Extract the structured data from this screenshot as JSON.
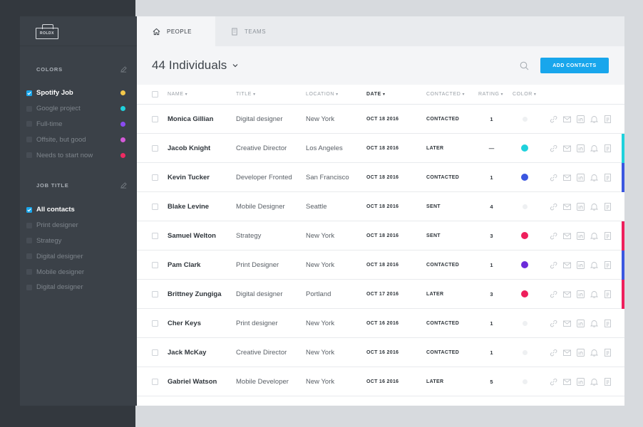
{
  "brand": {
    "logo_text": "ROLDX"
  },
  "sidebar": {
    "colors": {
      "heading": "COLORS",
      "items": [
        {
          "label": "Spotify Job",
          "checked": true,
          "color": "#f3c84a"
        },
        {
          "label": "Google project",
          "checked": false,
          "color": "#1fd1dc"
        },
        {
          "label": "Full-time",
          "checked": false,
          "color": "#8a4bf0"
        },
        {
          "label": "Offsite, but good",
          "checked": false,
          "color": "#d45ad8"
        },
        {
          "label": "Needs to start now",
          "checked": false,
          "color": "#ee2a62"
        }
      ]
    },
    "job_title": {
      "heading": "JOB TITLE",
      "items": [
        {
          "label": "All contacts",
          "checked": true
        },
        {
          "label": "Print designer",
          "checked": false
        },
        {
          "label": "Strategy",
          "checked": false
        },
        {
          "label": "Digital designer",
          "checked": false
        },
        {
          "label": "Mobile designer",
          "checked": false
        },
        {
          "label": "Digital designer",
          "checked": false
        }
      ]
    }
  },
  "tabs": [
    {
      "label": "PEOPLE",
      "icon": "home-icon",
      "active": true
    },
    {
      "label": "TEAMS",
      "icon": "building-icon",
      "active": false
    }
  ],
  "header": {
    "title": "44 Individuals",
    "add_button": "ADD CONTACTS"
  },
  "table": {
    "columns": {
      "name": "NAME",
      "title": "TITLE",
      "location": "LOCATION",
      "date": "DATE",
      "contacted": "CONTACTED",
      "rating": "RATING",
      "color": "COLOR"
    },
    "rows": [
      {
        "name": "Monica Gillian",
        "title": "Digital designer",
        "location": "New York",
        "date": "OCT 18 2016",
        "contacted": "CONTACTED",
        "rating": "1",
        "color": "",
        "edge": ""
      },
      {
        "name": "Jacob Knight",
        "title": "Creative Director",
        "location": "Los Angeles",
        "date": "OCT 18 2016",
        "contacted": "LATER",
        "rating": "—",
        "color": "#1fd1dc",
        "edge": "#1fd1dc"
      },
      {
        "name": "Kevin Tucker",
        "title": "Developer Fronted",
        "location": "San Francisco",
        "date": "OCT 18 2016",
        "contacted": "CONTACTED",
        "rating": "1",
        "color": "#3b57e0",
        "edge": "#3b57e0"
      },
      {
        "name": "Blake Levine",
        "title": "Mobile Designer",
        "location": "Seattle",
        "date": "OCT 18 2016",
        "contacted": "SENT",
        "rating": "4",
        "color": "",
        "edge": ""
      },
      {
        "name": "Samuel Welton",
        "title": "Strategy",
        "location": "New York",
        "date": "OCT 18 2016",
        "contacted": "SENT",
        "rating": "3",
        "color": "#ee1f5c",
        "edge": "#ee1f5c"
      },
      {
        "name": "Pam Clark",
        "title": "Print Designer",
        "location": "New York",
        "date": "OCT 18 2016",
        "contacted": "CONTACTED",
        "rating": "1",
        "color": "#6c2bd9",
        "edge": "#3b57e0"
      },
      {
        "name": "Brittney Zungiga",
        "title": "Digital designer",
        "location": "Portland",
        "date": "OCT 17 2016",
        "contacted": "LATER",
        "rating": "3",
        "color": "#ee1f5c",
        "edge": "#ee1f5c"
      },
      {
        "name": "Cher Keys",
        "title": "Print designer",
        "location": "New York",
        "date": "OCT 16 2016",
        "contacted": "CONTACTED",
        "rating": "1",
        "color": "",
        "edge": ""
      },
      {
        "name": "Jack McKay",
        "title": "Creative Director",
        "location": "New York",
        "date": "OCT 16 2016",
        "contacted": "CONTACTED",
        "rating": "1",
        "color": "",
        "edge": ""
      },
      {
        "name": "Gabriel Watson",
        "title": "Mobile Developer",
        "location": "New York",
        "date": "OCT 16 2016",
        "contacted": "LATER",
        "rating": "5",
        "color": "",
        "edge": ""
      }
    ],
    "actions": [
      "link-icon",
      "mail-icon",
      "linkedin-icon",
      "bell-icon",
      "note-icon"
    ]
  },
  "theme": {
    "accent": "#18a6ec",
    "sidebar_bg": "#3b4148"
  }
}
